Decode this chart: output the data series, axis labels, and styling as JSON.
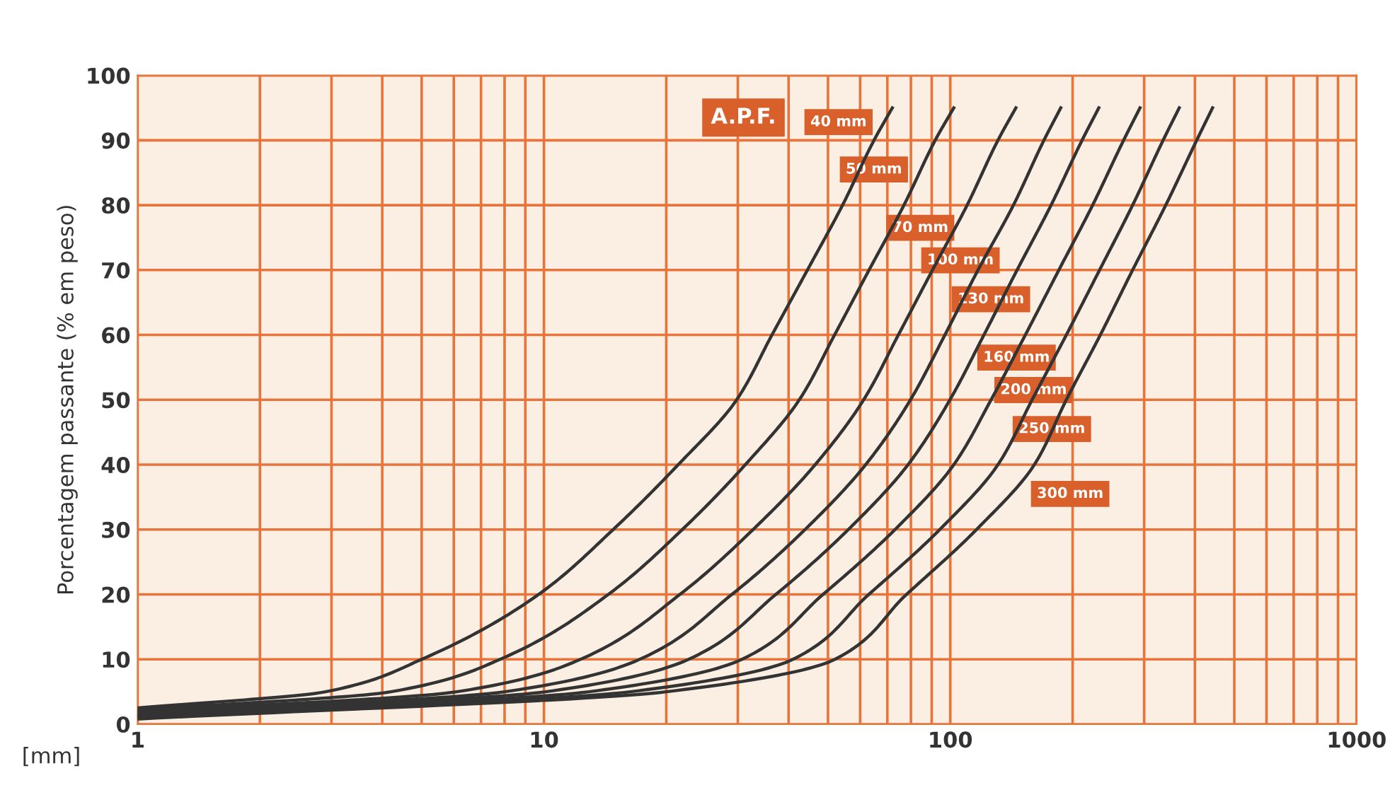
{
  "chart_data": {
    "type": "line",
    "xlabel": "[mm]",
    "ylabel": "Porcentagem passante (% em peso)",
    "log": "x",
    "xlim": [
      1,
      1000
    ],
    "ylim": [
      0,
      100
    ],
    "xticks": [
      1,
      {
        "value": 2,
        "label": null
      },
      {
        "value": 3,
        "label": null
      },
      {
        "value": 4,
        "label": null
      },
      {
        "value": 5,
        "label": null
      },
      {
        "value": 6,
        "label": null
      },
      {
        "value": 7,
        "label": null
      },
      {
        "value": 8,
        "label": null
      },
      {
        "value": 9,
        "label": null
      },
      10,
      {
        "value": 20,
        "label": null
      },
      {
        "value": 30,
        "label": null
      },
      {
        "value": 40,
        "label": null
      },
      {
        "value": 50,
        "label": null
      },
      {
        "value": 60,
        "label": null
      },
      {
        "value": 70,
        "label": null
      },
      {
        "value": 80,
        "label": null
      },
      {
        "value": 90,
        "label": null
      },
      100,
      {
        "value": 200,
        "label": null
      },
      {
        "value": 300,
        "label": null
      },
      {
        "value": 400,
        "label": null
      },
      {
        "value": 500,
        "label": null
      },
      {
        "value": 600,
        "label": null
      },
      {
        "value": 700,
        "label": null
      },
      {
        "value": 800,
        "label": null
      },
      {
        "value": 900,
        "label": null
      },
      1000
    ],
    "yticks": [
      0,
      10,
      20,
      30,
      40,
      50,
      60,
      70,
      80,
      90,
      100
    ],
    "grid": true,
    "line_style": "solid",
    "marker": "none",
    "series": [
      {
        "color": "#333333",
        "x": [
          1,
          2.9,
          5.0,
          9.7,
          14.8,
          21.4,
          29.8,
          36.4,
          44.5,
          54.3,
          64.9,
          72
        ],
        "values": [
          2.5,
          5,
          10,
          20,
          30,
          40,
          50,
          60,
          70,
          80,
          90,
          95
        ]
      },
      {
        "color": "#333333",
        "x": [
          1,
          4.2,
          7.8,
          14.4,
          21.9,
          31.3,
          42.5,
          51.9,
          63.1,
          76.9,
          91.8,
          102
        ],
        "values": [
          2.2,
          5,
          10,
          20,
          30,
          40,
          50,
          60,
          70,
          80,
          90,
          95
        ]
      },
      {
        "color": "#333333",
        "x": [
          1,
          6.1,
          12.3,
          21.6,
          32.7,
          46.5,
          61.2,
          74.5,
          90.4,
          110,
          131,
          145
        ],
        "values": [
          1.9,
          5,
          10,
          20,
          30,
          40,
          50,
          60,
          70,
          80,
          90,
          95
        ]
      },
      {
        "color": "#333333",
        "x": [
          1,
          8.0,
          17.2,
          29,
          43.9,
          61.9,
          79.8,
          97,
          117,
          143,
          170,
          187
        ],
        "values": [
          1.6,
          5,
          10,
          20,
          30,
          40,
          50,
          60,
          70,
          80,
          90,
          95
        ]
      },
      {
        "color": "#333333",
        "x": [
          1,
          10.1,
          22.7,
          37.2,
          56.1,
          78.7,
          99.8,
          121,
          146,
          177,
          211,
          232
        ],
        "values": [
          1.4,
          5,
          10,
          20,
          30,
          40,
          50,
          60,
          70,
          80,
          90,
          95
        ]
      },
      {
        "color": "#333333",
        "x": [
          1,
          12.9,
          30.7,
          48.6,
          73.1,
          102,
          126,
          153,
          185,
          224,
          267,
          293
        ],
        "values": [
          1.2,
          5,
          10,
          20,
          30,
          40,
          50,
          60,
          70,
          80,
          90,
          95
        ]
      },
      {
        "color": "#333333",
        "x": [
          1,
          16.3,
          41,
          63,
          94.2,
          131,
          159,
          193,
          233,
          281,
          334,
          366
        ],
        "values": [
          1.0,
          5,
          10,
          20,
          30,
          40,
          50,
          60,
          70,
          80,
          90,
          95
        ]
      },
      {
        "color": "#333333",
        "x": [
          1,
          20,
          52,
          78,
          116,
          161,
          193,
          234,
          281,
          339,
          404,
          442
        ],
        "values": [
          0.8,
          5,
          10,
          20,
          30,
          40,
          50,
          60,
          70,
          80,
          90,
          95
        ]
      }
    ],
    "annotations": [
      "A.P.F.",
      "40 mm",
      "50 mm",
      "70 mm",
      "100 mm",
      "130 mm",
      "160 mm",
      "200 mm",
      "250 mm",
      "300 mm"
    ]
  }
}
